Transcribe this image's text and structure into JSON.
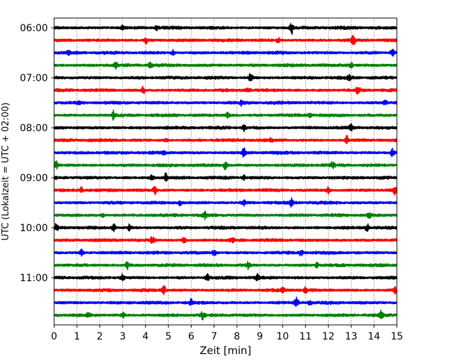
{
  "chart_data": {
    "type": "line",
    "title": "",
    "xlabel": "Zeit  [min]",
    "ylabel": "UTC (Lokalzeit = UTC + 02:00)",
    "xlim": [
      0,
      15
    ],
    "x_ticks": [
      "0",
      "1",
      "2",
      "3",
      "4",
      "5",
      "6",
      "7",
      "8",
      "9",
      "10",
      "11",
      "12",
      "13",
      "14",
      "15"
    ],
    "y_ticks": [
      "06:00",
      "07:00",
      "08:00",
      "09:00",
      "10:00",
      "11:00"
    ],
    "grid": "vertical dotted at each minute",
    "trace_colors": [
      "#000000",
      "#ff0000",
      "#0000ff",
      "#008000"
    ],
    "series": [
      {
        "start": "06:00",
        "color": "#000000",
        "events": [
          [
            3,
            0.7
          ],
          [
            10.4,
            1.6
          ],
          [
            4.5,
            0.6
          ]
        ]
      },
      {
        "start": "06:15",
        "color": "#ff0000",
        "events": [
          [
            4,
            1.0
          ],
          [
            13.1,
            1.3
          ],
          [
            9.8,
            0.6
          ]
        ]
      },
      {
        "start": "06:30",
        "color": "#0000ff",
        "events": [
          [
            0.6,
            0.7
          ],
          [
            5.2,
            0.6
          ],
          [
            14.8,
            0.9
          ]
        ]
      },
      {
        "start": "06:45",
        "color": "#008000",
        "events": [
          [
            2.7,
            0.8
          ],
          [
            4.2,
            0.6
          ],
          [
            13,
            0.6
          ]
        ]
      },
      {
        "start": "07:00",
        "color": "#000000",
        "events": [
          [
            8.6,
            1.3
          ],
          [
            12.9,
            0.6
          ]
        ]
      },
      {
        "start": "07:15",
        "color": "#ff0000",
        "events": [
          [
            3.9,
            0.9
          ],
          [
            13.3,
            1.3
          ],
          [
            8.5,
            0.6
          ]
        ]
      },
      {
        "start": "07:30",
        "color": "#0000ff",
        "events": [
          [
            1.1,
            0.6
          ],
          [
            8.2,
            0.7
          ],
          [
            14.5,
            0.6
          ]
        ]
      },
      {
        "start": "07:45",
        "color": "#008000",
        "events": [
          [
            2.6,
            1.2
          ],
          [
            7.6,
            0.8
          ],
          [
            11.2,
            0.6
          ]
        ]
      },
      {
        "start": "08:00",
        "color": "#000000",
        "events": [
          [
            8.3,
            1.1
          ],
          [
            13,
            0.7
          ]
        ]
      },
      {
        "start": "08:15",
        "color": "#ff0000",
        "events": [
          [
            12.8,
            1.3
          ],
          [
            4.9,
            0.6
          ],
          [
            9.5,
            0.6
          ]
        ]
      },
      {
        "start": "08:30",
        "color": "#0000ff",
        "events": [
          [
            8.3,
            1.4
          ],
          [
            14.8,
            1.0
          ],
          [
            4.8,
            0.6
          ]
        ]
      },
      {
        "start": "08:45",
        "color": "#008000",
        "events": [
          [
            0.1,
            1.0
          ],
          [
            7.5,
            1.2
          ],
          [
            12.2,
            0.9
          ]
        ]
      },
      {
        "start": "09:00",
        "color": "#000000",
        "events": [
          [
            4.3,
            0.9
          ],
          [
            4.9,
            1.3
          ],
          [
            8.3,
            0.6
          ]
        ]
      },
      {
        "start": "09:15",
        "color": "#ff0000",
        "events": [
          [
            1.2,
            0.8
          ],
          [
            4.4,
            1.0
          ],
          [
            12,
            0.9
          ],
          [
            14.9,
            1.0
          ]
        ]
      },
      {
        "start": "09:30",
        "color": "#0000ff",
        "events": [
          [
            8.3,
            1.2
          ],
          [
            10.4,
            1.0
          ],
          [
            5.5,
            0.7
          ]
        ]
      },
      {
        "start": "09:45",
        "color": "#008000",
        "events": [
          [
            6.6,
            1.0
          ],
          [
            13.8,
            0.9
          ],
          [
            2.1,
            0.6
          ]
        ]
      },
      {
        "start": "10:00",
        "color": "#000000",
        "events": [
          [
            0.1,
            1.1
          ],
          [
            2.6,
            1.1
          ],
          [
            3.3,
            0.8
          ],
          [
            13.7,
            1.1
          ]
        ]
      },
      {
        "start": "10:15",
        "color": "#ff0000",
        "events": [
          [
            4.3,
            0.9
          ],
          [
            5.7,
            0.8
          ],
          [
            7.8,
            0.7
          ]
        ]
      },
      {
        "start": "10:30",
        "color": "#0000ff",
        "events": [
          [
            1.2,
            0.9
          ],
          [
            7,
            1.0
          ],
          [
            10.8,
            0.8
          ]
        ]
      },
      {
        "start": "10:45",
        "color": "#008000",
        "events": [
          [
            3.2,
            1.3
          ],
          [
            8.5,
            0.9
          ],
          [
            11.5,
            0.6
          ]
        ]
      },
      {
        "start": "11:00",
        "color": "#000000",
        "events": [
          [
            3,
            0.8
          ],
          [
            6.7,
            1.2
          ],
          [
            8.9,
            0.8
          ]
        ]
      },
      {
        "start": "11:15",
        "color": "#ff0000",
        "events": [
          [
            4.8,
            1.3
          ],
          [
            10,
            0.9
          ],
          [
            11,
            0.8
          ],
          [
            14.9,
            0.8
          ]
        ]
      },
      {
        "start": "11:30",
        "color": "#0000ff",
        "events": [
          [
            6,
            0.8
          ],
          [
            10.6,
            1.3
          ],
          [
            11.2,
            0.6
          ]
        ]
      },
      {
        "start": "11:45",
        "color": "#008000",
        "events": [
          [
            1.5,
            0.7
          ],
          [
            3,
            0.8
          ],
          [
            6.5,
            1.0
          ],
          [
            14.3,
            1.1
          ]
        ]
      }
    ]
  }
}
